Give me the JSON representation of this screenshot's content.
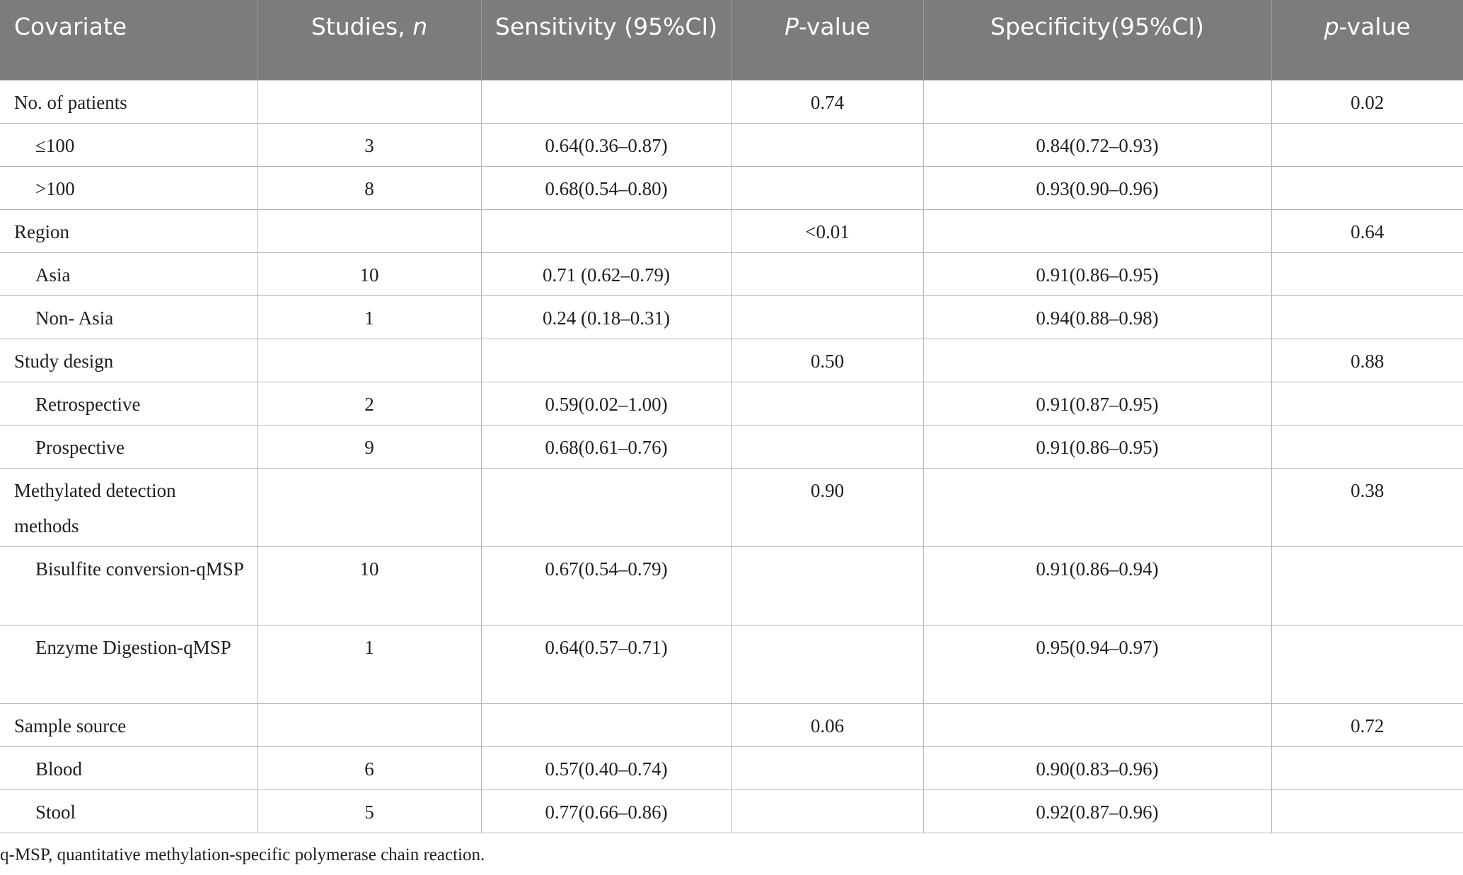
{
  "header": {
    "covariate": "Covariate",
    "studies_text": "Studies, ",
    "studies_italic": "n",
    "sensitivity": "Sensitivity (95%CI)",
    "p_italic": "P",
    "p_rest": "-value",
    "specificity": "Specificity(95%CI)",
    "p2_italic": "p",
    "p2_rest": "-value"
  },
  "rows": [
    {
      "covariate": "No. of patients",
      "studies": "",
      "sensitivity": "",
      "p": "0.74",
      "specificity": "",
      "p2": "0.02"
    },
    {
      "covariate": "≤100",
      "studies": "3",
      "sensitivity": "0.64(0.36–0.87)",
      "p": "",
      "specificity": "0.84(0.72–0.93)",
      "p2": ""
    },
    {
      "covariate": ">100",
      "studies": "8",
      "sensitivity": "0.68(0.54–0.80)",
      "p": "",
      "specificity": "0.93(0.90–0.96)",
      "p2": ""
    },
    {
      "covariate": "Region",
      "studies": "",
      "sensitivity": "",
      "p": "<0.01",
      "specificity": "",
      "p2": "0.64"
    },
    {
      "covariate": "Asia",
      "studies": "10",
      "sensitivity": "0.71 (0.62–0.79)",
      "p": "",
      "specificity": "0.91(0.86–0.95)",
      "p2": ""
    },
    {
      "covariate": "Non- Asia",
      "studies": "1",
      "sensitivity": "0.24 (0.18–0.31)",
      "p": "",
      "specificity": "0.94(0.88–0.98)",
      "p2": ""
    },
    {
      "covariate": "Study design",
      "studies": "",
      "sensitivity": "",
      "p": "0.50",
      "specificity": "",
      "p2": "0.88"
    },
    {
      "covariate": "Retrospective",
      "studies": "2",
      "sensitivity": "0.59(0.02–1.00)",
      "p": "",
      "specificity": "0.91(0.87–0.95)",
      "p2": ""
    },
    {
      "covariate": "Prospective",
      "studies": "9",
      "sensitivity": "0.68(0.61–0.76)",
      "p": "",
      "specificity": "0.91(0.86–0.95)",
      "p2": ""
    },
    {
      "covariate": "Methylated detection methods",
      "studies": "",
      "sensitivity": "",
      "p": "0.90",
      "specificity": "",
      "p2": "0.38"
    },
    {
      "covariate": "Bisulfite conversion-qMSP",
      "studies": "10",
      "sensitivity": "0.67(0.54–0.79)",
      "p": "",
      "specificity": "0.91(0.86–0.94)",
      "p2": ""
    },
    {
      "covariate": "Enzyme Digestion-qMSP",
      "studies": "1",
      "sensitivity": "0.64(0.57–0.71)",
      "p": "",
      "specificity": "0.95(0.94–0.97)",
      "p2": ""
    },
    {
      "covariate": "Sample source",
      "studies": "",
      "sensitivity": "",
      "p": "0.06",
      "specificity": "",
      "p2": "0.72"
    },
    {
      "covariate": "Blood",
      "studies": "6",
      "sensitivity": "0.57(0.40–0.74)",
      "p": "",
      "specificity": "0.90(0.83–0.96)",
      "p2": ""
    },
    {
      "covariate": "Stool",
      "studies": "5",
      "sensitivity": "0.77(0.66–0.86)",
      "p": "",
      "specificity": "0.92(0.87–0.96)",
      "p2": ""
    }
  ],
  "footnote": "q-MSP, quantitative methylation-specific polymerase chain reaction."
}
